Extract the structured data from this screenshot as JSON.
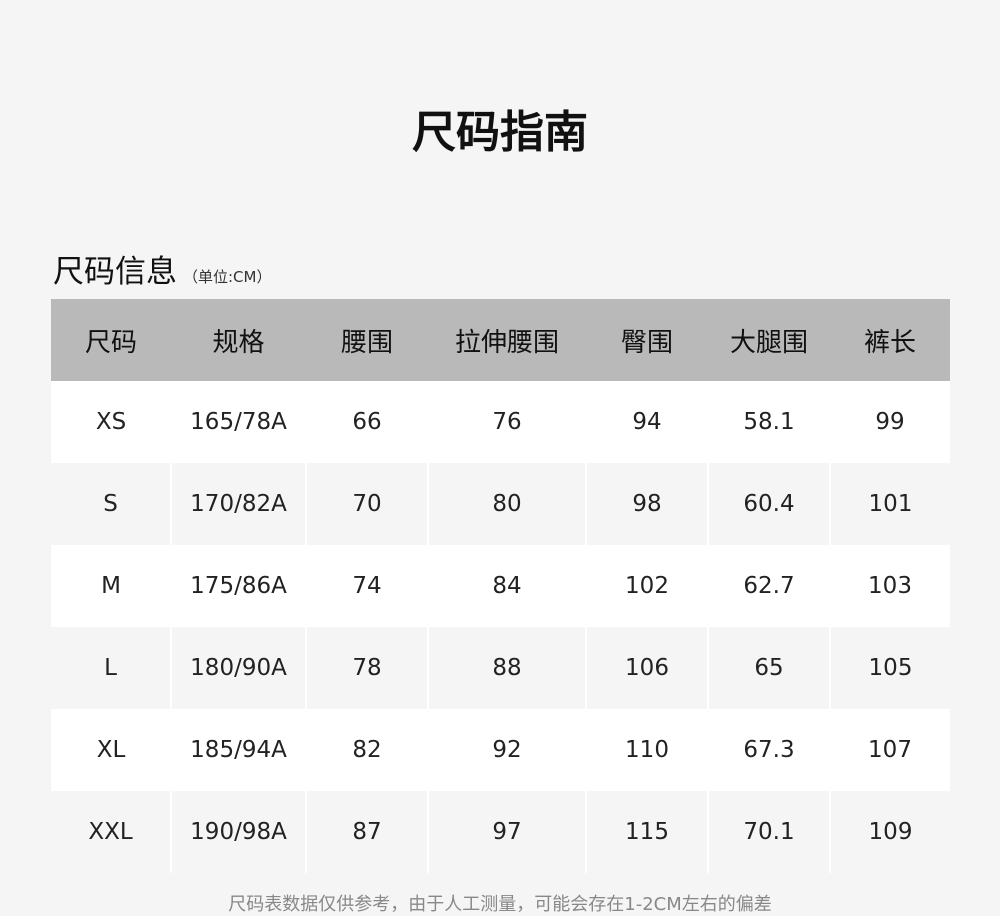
{
  "title": "尺码指南",
  "section": {
    "label": "尺码信息",
    "unit": "（单位:CM）"
  },
  "table": {
    "headers": [
      "尺码",
      "规格",
      "腰围",
      "拉伸腰围",
      "臀围",
      "大腿围",
      "裤长"
    ],
    "rows": [
      [
        "XS",
        "165/78A",
        "66",
        "76",
        "94",
        "58.1",
        "99"
      ],
      [
        "S",
        "170/82A",
        "70",
        "80",
        "98",
        "60.4",
        "101"
      ],
      [
        "M",
        "175/86A",
        "74",
        "84",
        "102",
        "62.7",
        "103"
      ],
      [
        "L",
        "180/90A",
        "78",
        "88",
        "106",
        "65",
        "105"
      ],
      [
        "XL",
        "185/94A",
        "82",
        "92",
        "110",
        "67.3",
        "107"
      ],
      [
        "XXL",
        "190/98A",
        "87",
        "97",
        "115",
        "70.1",
        "109"
      ]
    ]
  },
  "note": "尺码表数据仅供参考，由于人工测量，可能会存在1-2CM左右的偏差"
}
